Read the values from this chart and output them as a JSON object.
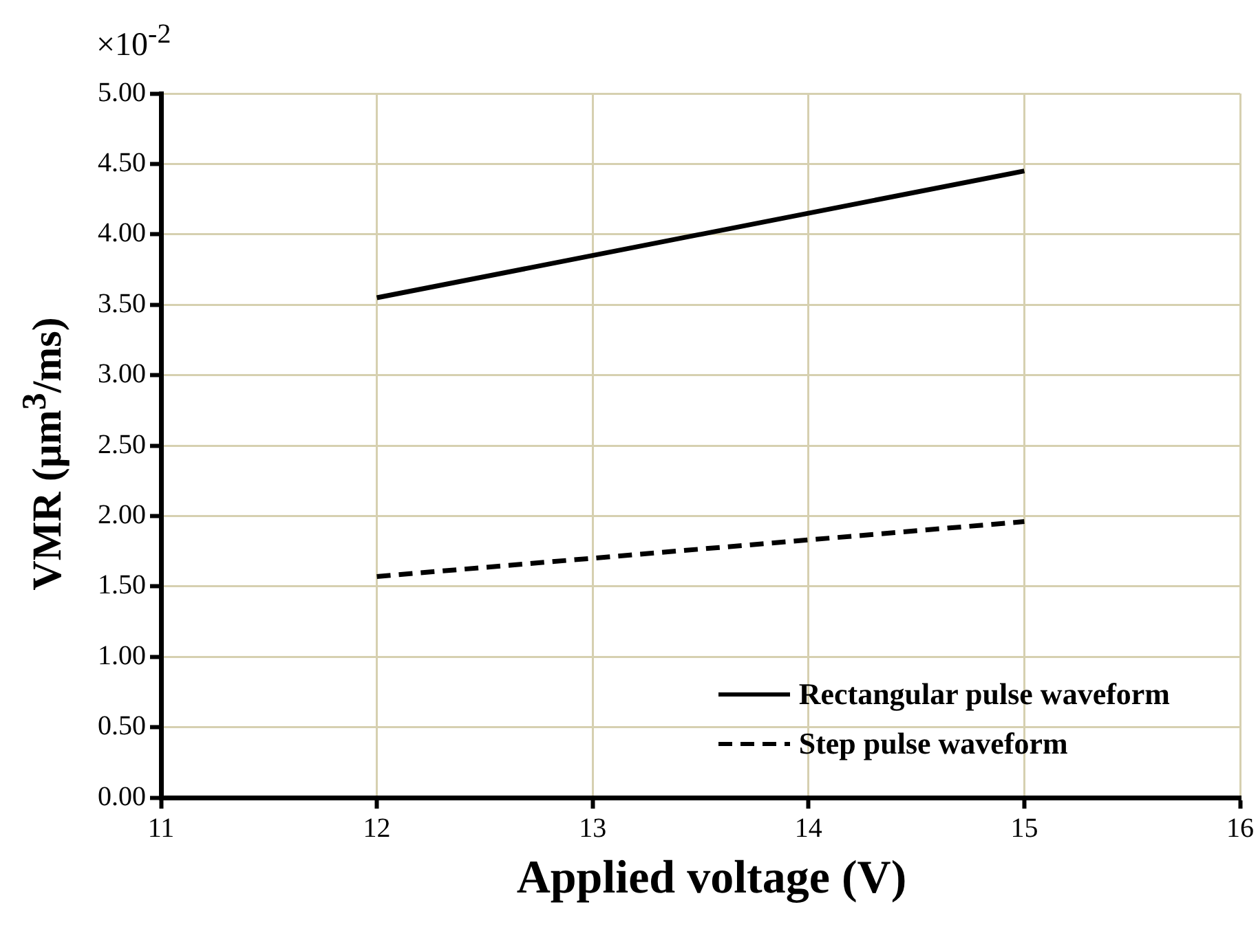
{
  "chart_data": {
    "type": "line",
    "xlabel": "Applied voltage (V)",
    "ylabel": "VMR (μm$^{3}$/ms)",
    "annotations": [
      "×10$^{-2}$"
    ],
    "x": [
      12,
      15
    ],
    "series": [
      {
        "name": "Rectangular pulse waveform",
        "color": "#000000",
        "line_style": "solid",
        "values": [
          3.55,
          4.45
        ]
      },
      {
        "name": "Step pulse waveform",
        "color": "#000000",
        "line_style": "dashed",
        "values": [
          1.57,
          1.96
        ]
      }
    ],
    "xlim": [
      11,
      16
    ],
    "xticks": [
      11,
      12,
      13,
      14,
      15,
      16
    ],
    "ylim": [
      0,
      5
    ],
    "yticks": [
      {
        "value": 0,
        "label": "0.00"
      },
      {
        "value": 0.5,
        "label": "0.50"
      },
      {
        "value": 1,
        "label": "1.00"
      },
      {
        "value": 1.5,
        "label": "1.50"
      },
      {
        "value": 2,
        "label": "2.00"
      },
      {
        "value": 2.5,
        "label": "2.50"
      },
      {
        "value": 3,
        "label": "3.00"
      },
      {
        "value": 3.5,
        "label": "3.50"
      },
      {
        "value": 4,
        "label": "4.00"
      },
      {
        "value": 4.5,
        "label": "4.50"
      },
      {
        "value": 5,
        "label": "5.00"
      }
    ],
    "grid": true,
    "legend": "bottom right",
    "marker": "none"
  }
}
